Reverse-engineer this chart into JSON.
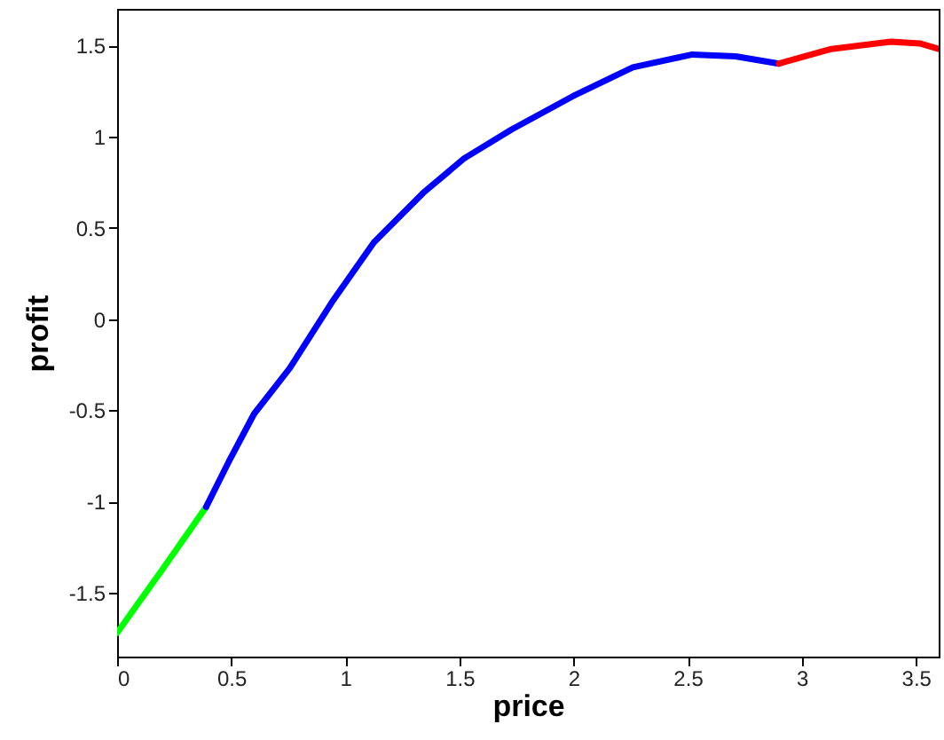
{
  "chart_data": {
    "type": "line",
    "xlabel": "price",
    "ylabel": "profit",
    "xlim": [
      0,
      3.6
    ],
    "ylim": [
      -1.85,
      1.7
    ],
    "xticks": [
      0,
      0.5,
      1,
      1.5,
      2,
      2.5,
      3,
      3.5
    ],
    "yticks": [
      -1.5,
      -1,
      -0.5,
      0,
      0.5,
      1,
      1.5
    ],
    "grid": false,
    "marker": "none",
    "line_style": "solid",
    "series": [
      {
        "color": "#00ff00",
        "x": [
          0,
          0.2,
          0.39
        ],
        "values": [
          -1.72,
          -1.37,
          -1.03
        ]
      },
      {
        "color": "#0000ff",
        "x": [
          0.39,
          0.49,
          0.6,
          0.756,
          0.94,
          1.125,
          1.34,
          1.52,
          1.73,
          1.995,
          2.26,
          2.52,
          2.71,
          2.9
        ],
        "values": [
          -1.03,
          -0.78,
          -0.52,
          -0.27,
          0.09,
          0.42,
          0.69,
          0.88,
          1.04,
          1.22,
          1.38,
          1.45,
          1.44,
          1.4
        ]
      },
      {
        "color": "#ff0000",
        "x": [
          2.9,
          3.13,
          3.39,
          3.52,
          3.6
        ],
        "values": [
          1.4,
          1.48,
          1.52,
          1.51,
          1.48
        ]
      }
    ]
  }
}
